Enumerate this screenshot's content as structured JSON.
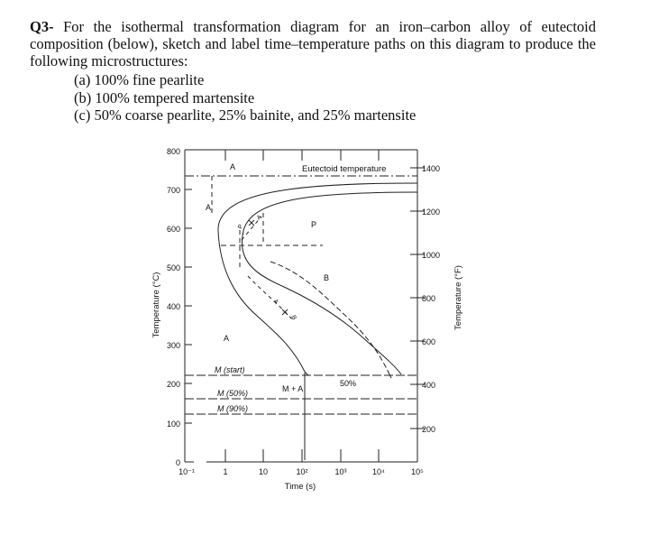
{
  "question": {
    "number": "Q3-",
    "text": "For the isothermal transformation diagram for an iron–carbon alloy of eutectoid composition (below), sketch and label time–temperature paths on this diagram to produce the following microstructures:",
    "parts": [
      "(a) 100% fine pearlite",
      "(b) 100% tempered martensite",
      "(c) 50% coarse pearlite, 25% bainite, and 25% martensite"
    ]
  },
  "figure": {
    "y_left_label": "Temperature (°C)",
    "y_right_label": "Temperature (°F)",
    "x_label": "Time (s)",
    "y_left_ticks": [
      "0",
      "100",
      "200",
      "300",
      "400",
      "500",
      "600",
      "700",
      "800"
    ],
    "y_right_ticks": [
      "200",
      "400",
      "600",
      "800",
      "1000",
      "1200",
      "1400"
    ],
    "x_ticks": [
      "10⁻¹",
      "1",
      "10",
      "10²",
      "10³",
      "10⁴",
      "10⁵"
    ],
    "labels": {
      "eutectoid": "Eutectoid temperature",
      "a_top": "A",
      "a_mid": "A",
      "a_low": "A",
      "p": "P",
      "b": "B",
      "m_start": "M (start)",
      "m_50": "M (50%)",
      "m_90": "M (90%)",
      "m_plus_a": "M + A",
      "fifty_percent": "50%",
      "path_a": "A",
      "path_p": "P",
      "path_a2": "A",
      "path_b": "B"
    }
  }
}
